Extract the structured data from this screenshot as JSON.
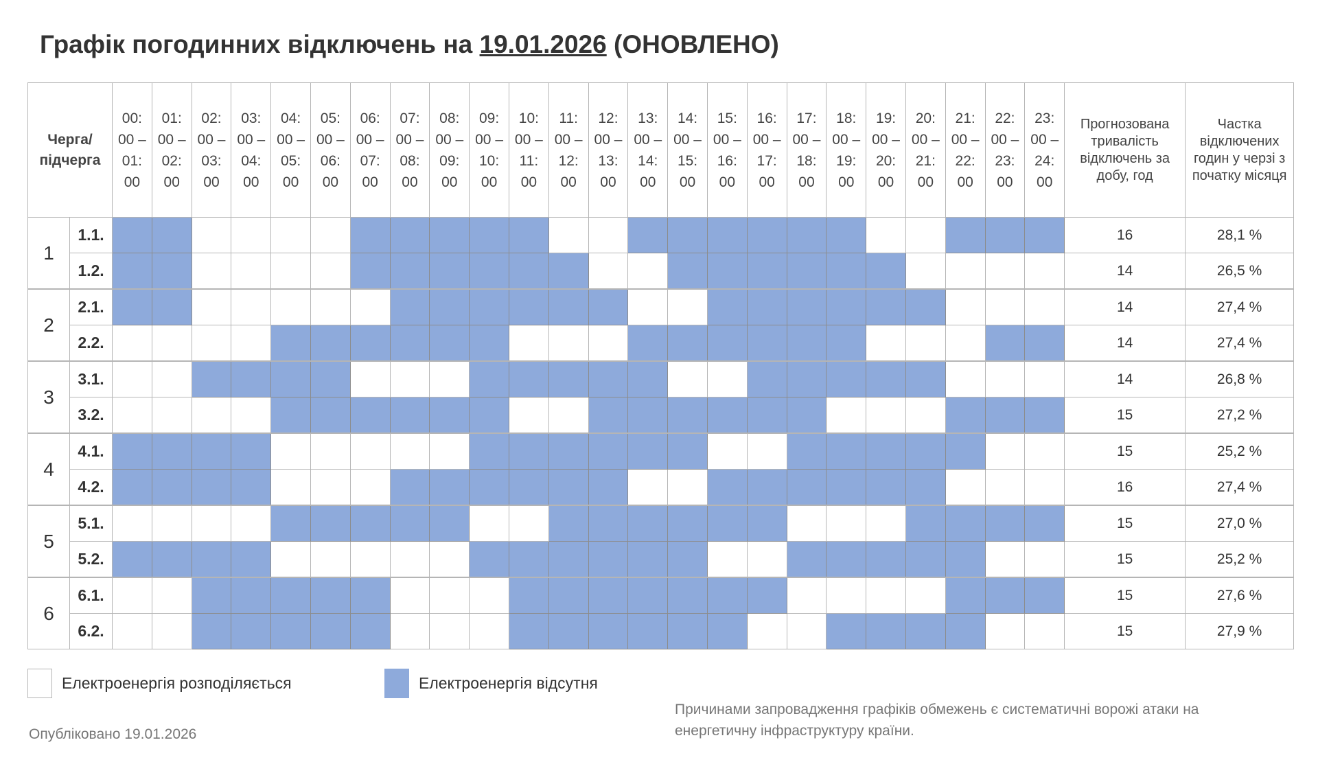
{
  "title": {
    "prefix": "Графік погодинних відключень на ",
    "date": "19.01.2026",
    "suffix": " (ОНОВЛЕНО)"
  },
  "header": {
    "queue": "Черга/ підчерга",
    "hours": [
      "00: 00 – 01: 00",
      "01: 00 – 02: 00",
      "02: 00 – 03: 00",
      "03: 00 – 04: 00",
      "04: 00 – 05: 00",
      "05: 00 – 06: 00",
      "06: 00 – 07: 00",
      "07: 00 – 08: 00",
      "08: 00 – 09: 00",
      "09: 00 – 10: 00",
      "10: 00 – 11: 00",
      "11: 00 – 12: 00",
      "12: 00 – 13: 00",
      "13: 00 – 14: 00",
      "14: 00 – 15: 00",
      "15: 00 – 16: 00",
      "16: 00 – 17: 00",
      "17: 00 – 18: 00",
      "18: 00 – 19: 00",
      "19: 00 – 20: 00",
      "20: 00 – 21: 00",
      "21: 00 – 22: 00",
      "22: 00 – 23: 00",
      "23: 00 – 24: 00"
    ],
    "forecast": "Прогнозована тривалість відключень за добу, год",
    "share": "Частка відключених годин у черзі з початку місяця"
  },
  "colors": {
    "off": "#8eaadb",
    "on": "#ffffff"
  },
  "groups": [
    {
      "label": "1",
      "rows": [
        {
          "sub": "1.1.",
          "hours": "110000111110011111100111",
          "forecast": "16",
          "share": "28,1 %"
        },
        {
          "sub": "1.2.",
          "hours": "110000111111001111110000",
          "forecast": "14",
          "share": "26,5 %"
        }
      ]
    },
    {
      "label": "2",
      "rows": [
        {
          "sub": "2.1.",
          "hours": "110000011111100111111000",
          "forecast": "14",
          "share": "27,4 %"
        },
        {
          "sub": "2.2.",
          "hours": "000011111100011111100011",
          "forecast": "14",
          "share": "27,4 %"
        }
      ]
    },
    {
      "label": "3",
      "rows": [
        {
          "sub": "3.1.",
          "hours": "001111000111110011111000",
          "forecast": "14",
          "share": "26,8 %"
        },
        {
          "sub": "3.2.",
          "hours": "000011111100111111000111",
          "forecast": "15",
          "share": "27,2 %"
        }
      ]
    },
    {
      "label": "4",
      "rows": [
        {
          "sub": "4.1.",
          "hours": "111100000111111001111100",
          "forecast": "15",
          "share": "25,2 %"
        },
        {
          "sub": "4.2.",
          "hours": "111100011111100111111000",
          "forecast": "16",
          "share": "27,4 %"
        }
      ]
    },
    {
      "label": "5",
      "rows": [
        {
          "sub": "5.1.",
          "hours": "000011111001111110001111",
          "forecast": "15",
          "share": "27,0 %"
        },
        {
          "sub": "5.2.",
          "hours": "111100000111111001111100",
          "forecast": "15",
          "share": "25,2 %"
        }
      ]
    },
    {
      "label": "6",
      "rows": [
        {
          "sub": "6.1.",
          "hours": "001111100011111110000111",
          "forecast": "15",
          "share": "27,6 %"
        },
        {
          "sub": "6.2.",
          "hours": "001111100011111100111100",
          "forecast": "15",
          "share": "27,9 %"
        }
      ]
    }
  ],
  "legend": {
    "on": "Електроенергія розподіляється",
    "off": "Електроенергія відсутня"
  },
  "note": "Причинами запровадження графіків обмежень є систематичні ворожі атаки на енергетичну інфраструктуру країни.",
  "published": "Опубліковано 19.01.2026"
}
